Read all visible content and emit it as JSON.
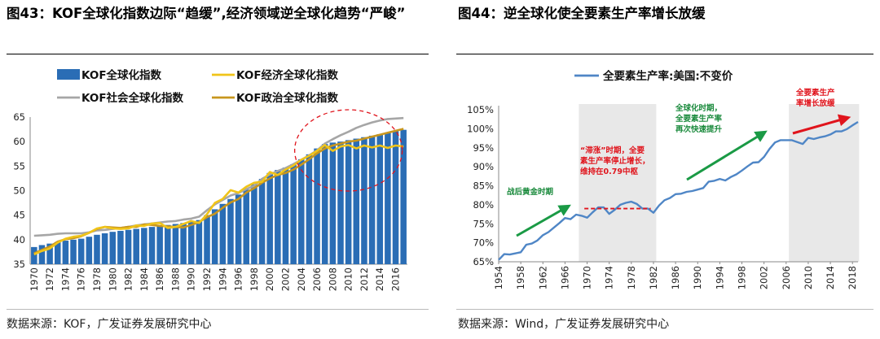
{
  "left_figure": {
    "title": "图43：KOF全球化指数边际“趋缓”,经济领域逆全球化趋势“严峻”",
    "source": "数据来源：KOF，广发证券发展研究中心"
  },
  "right_figure": {
    "title": "图44：逆全球化使全要素生产率增长放缓",
    "source": "数据来源：Wind，广发证券发展研究中心"
  },
  "colors": {
    "kof_bar": "#2a6db5",
    "economic": "#f0c419",
    "social": "#a6a6a6",
    "political": "#c8961e",
    "tfp_line": "#4f86c6",
    "shade": "#e8e8e8",
    "red": "#e0141c",
    "green": "#1a9a45"
  },
  "chart_data": [
    {
      "type": "bar",
      "title": "",
      "xlabel": "",
      "ylabel": "",
      "ylim": [
        35,
        65
      ],
      "yticks": [
        "35",
        "40",
        "45",
        "50",
        "55",
        "60",
        "65"
      ],
      "xtick_labels": [
        "1970",
        "1972",
        "1974",
        "1976",
        "1978",
        "1980",
        "1982",
        "1984",
        "1986",
        "1988",
        "1990",
        "1992",
        "1994",
        "1996",
        "1998",
        "2000",
        "2002",
        "2004",
        "2006",
        "2008",
        "2010",
        "2012",
        "2014",
        "2016"
      ],
      "categories": [
        1970,
        1971,
        1972,
        1973,
        1974,
        1975,
        1976,
        1977,
        1978,
        1979,
        1980,
        1981,
        1982,
        1983,
        1984,
        1985,
        1986,
        1987,
        1988,
        1989,
        1990,
        1991,
        1992,
        1993,
        1994,
        1995,
        1996,
        1997,
        1998,
        1999,
        2000,
        2001,
        2002,
        2003,
        2004,
        2005,
        2006,
        2007,
        2008,
        2009,
        2010,
        2011,
        2012,
        2013,
        2014,
        2015,
        2016,
        2017
      ],
      "series": [
        {
          "name": "KOF全球化指数",
          "kind": "bar",
          "values": [
            38.5,
            38.9,
            39.2,
            39.5,
            39.8,
            40.0,
            40.2,
            40.6,
            41.0,
            41.3,
            41.6,
            41.8,
            42.0,
            42.2,
            42.4,
            42.6,
            42.8,
            43.0,
            43.2,
            43.4,
            43.6,
            44.0,
            45.0,
            46.2,
            47.3,
            48.3,
            49.2,
            50.2,
            51.3,
            52.4,
            53.6,
            54.2,
            54.7,
            55.4,
            56.4,
            57.4,
            58.6,
            59.5,
            59.8,
            60.0,
            60.3,
            60.6,
            60.9,
            61.2,
            61.5,
            61.8,
            62.1,
            62.4
          ]
        },
        {
          "name": "KOF经济全球化指数",
          "kind": "line",
          "values": [
            37.0,
            37.7,
            38.2,
            39.4,
            40.2,
            40.6,
            40.8,
            41.4,
            42.3,
            42.6,
            42.3,
            42.2,
            42.3,
            42.9,
            42.8,
            43.3,
            43.4,
            42.4,
            42.6,
            43.2,
            43.8,
            43.4,
            45.2,
            47.5,
            48.3,
            50.1,
            49.6,
            50.8,
            51.6,
            51.8,
            53.8,
            53.2,
            54.3,
            55.1,
            56.3,
            57.1,
            58.1,
            59.3,
            58.1,
            59.0,
            59.3,
            58.6,
            59.2,
            58.8,
            59.2,
            58.7,
            59.2,
            59.0
          ]
        },
        {
          "name": "KOF社会全球化指数",
          "kind": "line",
          "values": [
            40.8,
            40.9,
            41.0,
            41.2,
            41.3,
            41.3,
            41.3,
            41.5,
            41.9,
            42.0,
            42.2,
            42.4,
            42.6,
            42.9,
            43.1,
            43.3,
            43.5,
            43.7,
            43.8,
            44.1,
            44.3,
            44.7,
            46.0,
            47.2,
            48.1,
            49.0,
            49.5,
            50.3,
            51.0,
            52.4,
            53.3,
            54.0,
            54.6,
            55.4,
            56.3,
            57.2,
            58.2,
            59.6,
            60.5,
            61.3,
            62.0,
            62.8,
            63.4,
            63.9,
            64.3,
            64.6,
            64.7,
            64.8
          ]
        },
        {
          "name": "KOF政治全球化指数",
          "kind": "line",
          "values": [
            37.2,
            37.9,
            38.6,
            39.6,
            40.1,
            40.3,
            40.7,
            41.4,
            42.2,
            42.6,
            42.5,
            42.4,
            42.6,
            42.6,
            43.1,
            43.0,
            42.8,
            42.7,
            42.6,
            42.5,
            43.0,
            43.6,
            44.6,
            45.3,
            46.5,
            47.6,
            48.3,
            49.6,
            50.5,
            51.6,
            52.5,
            53.2,
            53.6,
            54.3,
            55.3,
            56.4,
            57.6,
            58.6,
            59.2,
            59.6,
            60.0,
            60.2,
            60.6,
            61.0,
            61.4,
            61.8,
            62.2,
            62.6
          ]
        }
      ],
      "annotations": [
        "dashed red circle highlighting 2008-2017 divergence"
      ]
    },
    {
      "type": "line",
      "title": "",
      "xlabel": "",
      "ylabel": "",
      "ylim": [
        65,
        105
      ],
      "yticks": [
        "65%",
        "70%",
        "75%",
        "80%",
        "85%",
        "90%",
        "95%",
        "100%",
        "105%"
      ],
      "xtick_labels": [
        "1954",
        "1958",
        "1962",
        "1966",
        "1970",
        "1974",
        "1978",
        "1982",
        "1986",
        "1990",
        "1994",
        "1998",
        "2002",
        "2006",
        "2010",
        "2014",
        "2018"
      ],
      "xlim": [
        1954,
        2019
      ],
      "series": [
        {
          "name": "全要素生产率:美国:不变价",
          "x": [
            1954,
            1955,
            1956,
            1957,
            1958,
            1959,
            1960,
            1961,
            1962,
            1963,
            1964,
            1965,
            1966,
            1967,
            1968,
            1969,
            1970,
            1971,
            1972,
            1973,
            1974,
            1975,
            1976,
            1977,
            1978,
            1979,
            1980,
            1981,
            1982,
            1983,
            1984,
            1985,
            1986,
            1987,
            1988,
            1989,
            1990,
            1991,
            1992,
            1993,
            1994,
            1995,
            1996,
            1997,
            1998,
            1999,
            2000,
            2001,
            2002,
            2003,
            2004,
            2005,
            2006,
            2007,
            2008,
            2009,
            2010,
            2011,
            2012,
            2013,
            2014,
            2015,
            2016,
            2017,
            2018,
            2019
          ],
          "values": [
            65.5,
            67.0,
            66.9,
            67.2,
            67.5,
            69.5,
            69.8,
            70.6,
            72.0,
            72.8,
            74.0,
            75.2,
            76.5,
            76.2,
            77.4,
            77.1,
            76.6,
            78.0,
            79.3,
            79.3,
            77.6,
            78.7,
            80.0,
            80.5,
            80.8,
            80.2,
            79.0,
            79.0,
            77.9,
            79.8,
            81.2,
            81.8,
            82.8,
            82.9,
            83.4,
            83.6,
            84.0,
            84.4,
            86.1,
            86.3,
            86.8,
            86.4,
            87.3,
            88.0,
            89.0,
            90.1,
            91.1,
            91.2,
            92.6,
            94.7,
            96.4,
            97.0,
            97.0,
            97.0,
            96.5,
            96.0,
            97.6,
            97.3,
            97.7,
            98.0,
            98.5,
            99.3,
            99.3,
            99.9,
            100.9,
            101.8
          ]
        }
      ],
      "shaded_ranges": [
        [
          1968.5,
          1982.5
        ],
        [
          2006.5,
          2019.2
        ]
      ],
      "annotations": {
        "golden_age": "战后黄金时期",
        "stagflation": [
          "“滞涨”时期，全要",
          "素生产率停止增长，",
          "维持在0.79中枢"
        ],
        "globalization": [
          "全球化时期，",
          "全要素生产率",
          "再次快速提升"
        ],
        "slowdown": [
          "全要素生产",
          "率增长放缓"
        ],
        "stagflation_center": 0.79
      }
    }
  ]
}
